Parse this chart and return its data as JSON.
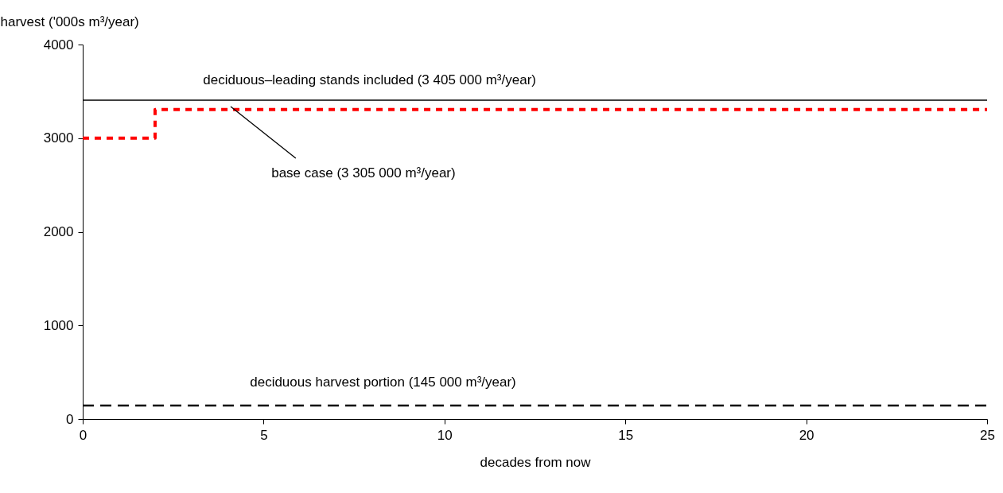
{
  "chart_data": {
    "type": "line",
    "xlabel": "decades from now",
    "ylabel": "harvest ('000s m³/year)",
    "xlim": [
      0,
      25
    ],
    "xticks": [
      0,
      5,
      10,
      15,
      20,
      25
    ],
    "ylim": [
      0,
      4000
    ],
    "yticks": [
      0,
      1000,
      2000,
      3000,
      4000
    ],
    "grid": false,
    "legend": false,
    "series": [
      {
        "name": "deciduous–leading stands included (3 405 000 m³/year)",
        "color": "#000000",
        "line_style": "solid",
        "x": [
          0,
          25
        ],
        "values": [
          3405,
          3405
        ]
      },
      {
        "name": "base case (3 305 000 m³/year)",
        "type": "step",
        "color": "#ff0000",
        "line_style": "dotted",
        "x": [
          0,
          2,
          25
        ],
        "values": [
          3000,
          3305,
          3305
        ]
      },
      {
        "name": "deciduous harvest portion (145 000 m³/year)",
        "color": "#000000",
        "line_style": "dashed",
        "x": [
          0,
          25
        ],
        "values": [
          145,
          145
        ]
      }
    ]
  }
}
